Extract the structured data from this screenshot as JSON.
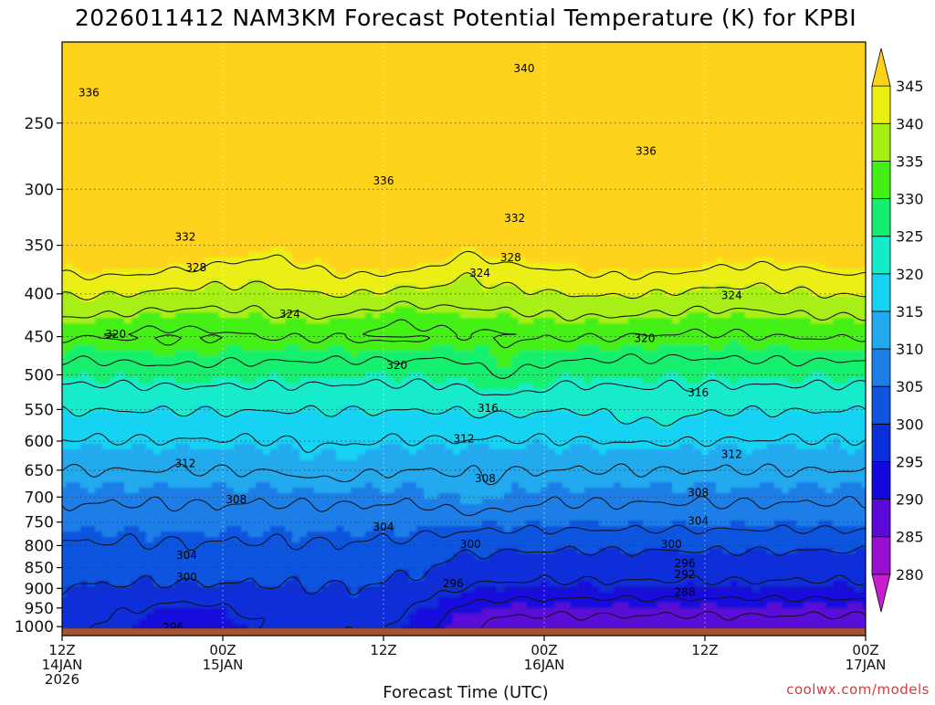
{
  "chart_data": {
    "type": "heatmap",
    "title": "2026011412 NAM3KM Forecast Potential Temperature (K) for KPBI",
    "xlabel": "Forecast Time (UTC)",
    "ylabel": "",
    "credit": "coolwx.com/models",
    "x_range_hours": [
      0,
      60
    ],
    "y_levels_hpa": [
      1000,
      950,
      900,
      850,
      800,
      750,
      700,
      650,
      600,
      550,
      500,
      450,
      400,
      350,
      300,
      250
    ],
    "y_tick_labels": [
      "1000",
      "950",
      "900",
      "850",
      "800",
      "750",
      "700",
      "650",
      "600",
      "550",
      "500",
      "450",
      "400",
      "350",
      "300",
      "250"
    ],
    "y_range_hpa": [
      1025,
      200
    ],
    "x_ticks": [
      {
        "hour": 0,
        "line1": "12Z",
        "line2": "14JAN",
        "line3": "2026"
      },
      {
        "hour": 12,
        "line1": "00Z",
        "line2": "15JAN",
        "line3": ""
      },
      {
        "hour": 24,
        "line1": "12Z",
        "line2": "",
        "line3": ""
      },
      {
        "hour": 36,
        "line1": "00Z",
        "line2": "16JAN",
        "line3": ""
      },
      {
        "hour": 48,
        "line1": "12Z",
        "line2": "",
        "line3": ""
      },
      {
        "hour": 60,
        "line1": "00Z",
        "line2": "17JAN",
        "line3": ""
      }
    ],
    "colorbar": {
      "levels": [
        280,
        285,
        290,
        295,
        300,
        305,
        310,
        315,
        320,
        325,
        330,
        335,
        340,
        345
      ],
      "labels": [
        "280",
        "285",
        "290",
        "295",
        "300",
        "305",
        "310",
        "315",
        "320",
        "325",
        "330",
        "335",
        "340",
        "345"
      ],
      "colors": [
        "#c81ed0",
        "#9a10d2",
        "#5a0ad6",
        "#1208dc",
        "#0a2fd8",
        "#1155df",
        "#1c7ee6",
        "#20a9ee",
        "#16d3f3",
        "#12eccb",
        "#14ee6e",
        "#44f014",
        "#a7ef12",
        "#ecef12",
        "#ffd21a"
      ]
    },
    "grid": true,
    "bottom_pressure_hpa": 1000,
    "contour_interval_K": 4,
    "contour_labels": [
      {
        "hour": 2.0,
        "p": 230,
        "text": "336"
      },
      {
        "hour": 34.5,
        "p": 215,
        "text": "340"
      },
      {
        "hour": 43.6,
        "p": 270,
        "text": "336"
      },
      {
        "hour": 24.0,
        "p": 293,
        "text": "336"
      },
      {
        "hour": 33.8,
        "p": 325,
        "text": "332"
      },
      {
        "hour": 9.2,
        "p": 342,
        "text": "332"
      },
      {
        "hour": 10.0,
        "p": 372,
        "text": "328"
      },
      {
        "hour": 33.5,
        "p": 362,
        "text": "328"
      },
      {
        "hour": 31.2,
        "p": 378,
        "text": "324"
      },
      {
        "hour": 17.0,
        "p": 423,
        "text": "324"
      },
      {
        "hour": 50.0,
        "p": 402,
        "text": "324"
      },
      {
        "hour": 4.0,
        "p": 447,
        "text": "320"
      },
      {
        "hour": 25.0,
        "p": 487,
        "text": "320"
      },
      {
        "hour": 43.5,
        "p": 452,
        "text": "320"
      },
      {
        "hour": 31.8,
        "p": 548,
        "text": "316"
      },
      {
        "hour": 47.5,
        "p": 525,
        "text": "316"
      },
      {
        "hour": 30.0,
        "p": 596,
        "text": "312"
      },
      {
        "hour": 9.2,
        "p": 638,
        "text": "312"
      },
      {
        "hour": 50.0,
        "p": 622,
        "text": "312"
      },
      {
        "hour": 31.6,
        "p": 665,
        "text": "308"
      },
      {
        "hour": 13.0,
        "p": 705,
        "text": "308"
      },
      {
        "hour": 47.5,
        "p": 692,
        "text": "308"
      },
      {
        "hour": 47.5,
        "p": 748,
        "text": "304"
      },
      {
        "hour": 24.0,
        "p": 760,
        "text": "304"
      },
      {
        "hour": 9.3,
        "p": 822,
        "text": "304"
      },
      {
        "hour": 30.5,
        "p": 797,
        "text": "300"
      },
      {
        "hour": 45.5,
        "p": 797,
        "text": "300"
      },
      {
        "hour": 9.3,
        "p": 873,
        "text": "300"
      },
      {
        "hour": 46.5,
        "p": 840,
        "text": "296"
      },
      {
        "hour": 29.2,
        "p": 888,
        "text": "296"
      },
      {
        "hour": 46.5,
        "p": 866,
        "text": "292"
      },
      {
        "hour": 46.5,
        "p": 910,
        "text": "288"
      },
      {
        "hour": 8.3,
        "p": 1002,
        "text": "296"
      }
    ]
  }
}
